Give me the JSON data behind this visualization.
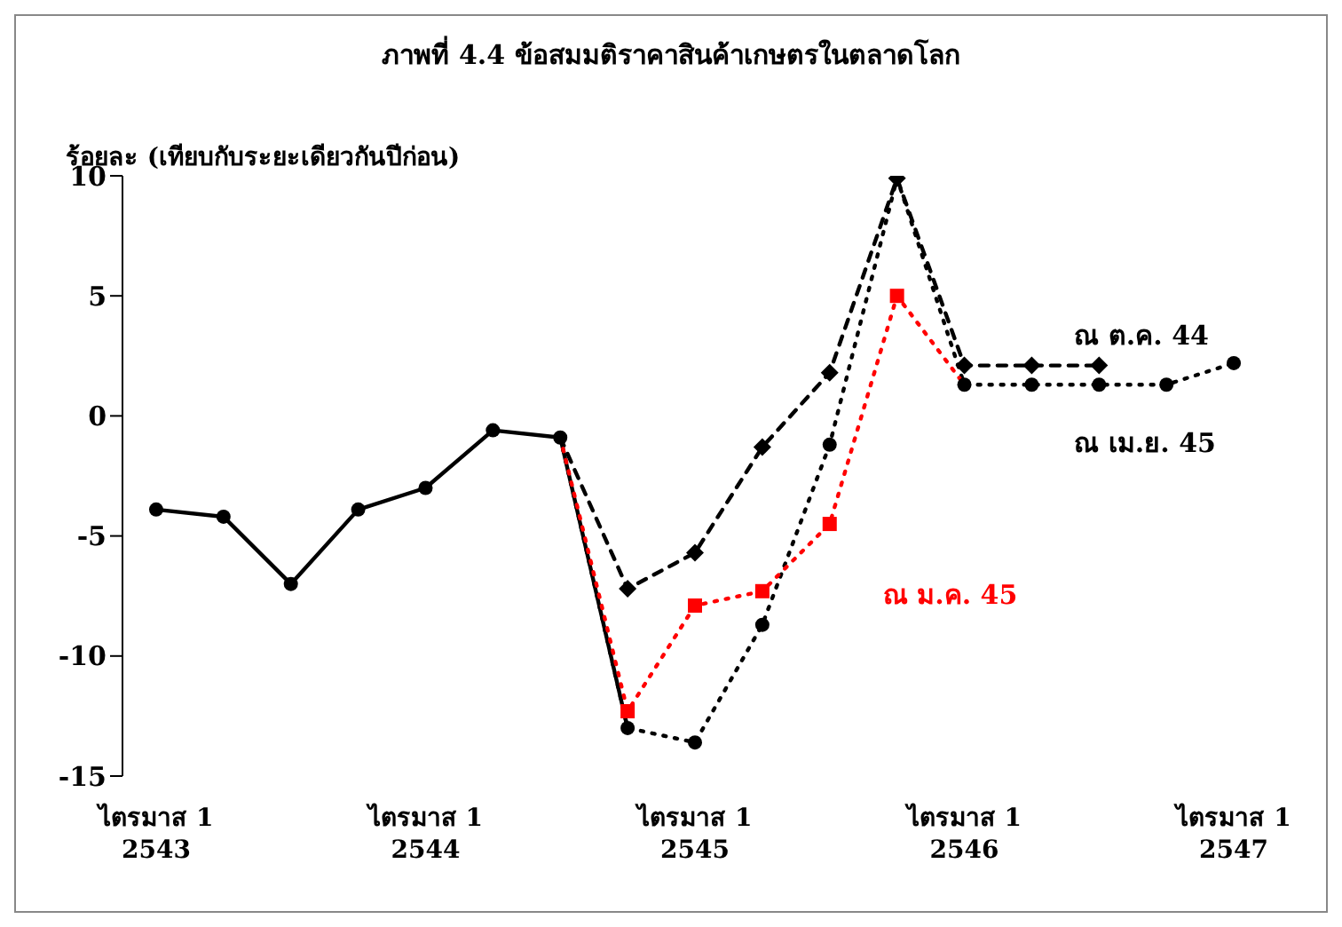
{
  "chart_data": {
    "type": "line",
    "title": "ภาพที่ 4.4  ข้อสมมติราคาสินค้าเกษตรในตลาดโลก",
    "ylabel": "ร้อยละ (เทียบกับระยะเดียวกันปีก่อน)",
    "categories": [
      "ไตรมาส 1\n2543",
      null,
      null,
      null,
      "ไตรมาส 1\n2544",
      null,
      null,
      null,
      "ไตรมาส 1\n2545",
      null,
      null,
      null,
      "ไตรมาส 1\n2546",
      null,
      null,
      null,
      "ไตรมาส 1\n2547"
    ],
    "series": [
      {
        "color": "#000000",
        "marker": "circle",
        "line_style": "solid",
        "values": [
          -3.9,
          -4.2,
          -7.0,
          -3.9,
          -3.0,
          -0.6,
          -0.9,
          -13.0,
          null,
          null,
          null,
          null,
          null,
          null,
          null,
          null,
          null
        ]
      },
      {
        "name": "ณ ต.ค. 44",
        "color": "#000000",
        "marker": "diamond",
        "line_style": "dashed",
        "values": [
          null,
          null,
          null,
          null,
          null,
          null,
          -0.9,
          -7.2,
          -5.7,
          -1.3,
          1.8,
          9.9,
          2.1,
          2.1,
          2.1,
          null,
          null
        ]
      },
      {
        "name": "ณ เม.ย. 45",
        "color": "#000000",
        "marker": "circle",
        "line_style": "dotted",
        "values": [
          null,
          null,
          null,
          null,
          null,
          null,
          -0.9,
          -13.0,
          -13.6,
          -8.7,
          -1.2,
          9.9,
          1.3,
          1.3,
          1.3,
          1.3,
          2.2
        ]
      },
      {
        "name": "ณ ม.ค. 45",
        "color": "#ff0000",
        "marker": "square",
        "line_style": "dotted",
        "values": [
          null,
          null,
          null,
          null,
          null,
          null,
          -0.9,
          -12.3,
          -7.9,
          -7.3,
          -4.5,
          5.0,
          1.3,
          null,
          null,
          null,
          null
        ]
      }
    ],
    "ylim": [
      -15,
      10
    ],
    "yticks": [
      -15,
      -10,
      -5,
      0,
      5,
      10
    ],
    "grid": false,
    "legend": false
  }
}
